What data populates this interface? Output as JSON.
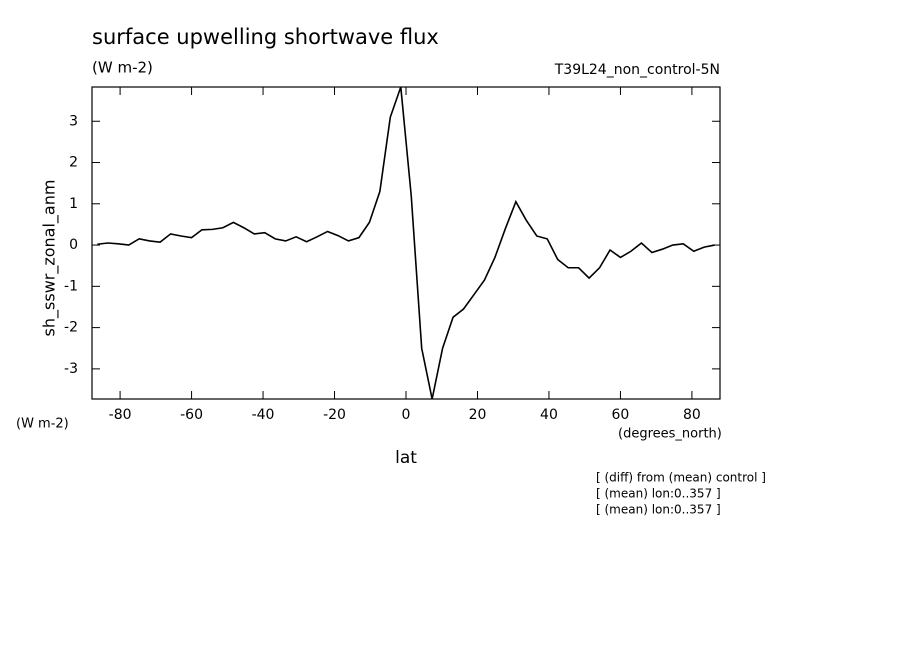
{
  "chart_data": {
    "type": "line",
    "title": "surface upwelling shortwave flux",
    "title_units": "(W m-2)",
    "subtitle_right": "T39L24_non_control-5N",
    "ylabel": "sh_sswr_zonal_anm",
    "y_units": "(W m-2)",
    "xlabel": "lat",
    "x_units": "(degrees_north)",
    "notes": [
      "[ (diff) from (mean) control ]",
      "[ (mean) lon:0..357 ]",
      "[ (mean) lon:0..357 ]"
    ],
    "xlim": [
      -87.86,
      87.86
    ],
    "ylim": [
      -3.73,
      3.83
    ],
    "xticks": [
      -80,
      -60,
      -40,
      -20,
      0,
      20,
      40,
      60,
      80
    ],
    "yticks": [
      -3,
      -2,
      -1,
      0,
      1,
      2,
      3
    ],
    "x": [
      -86.37,
      -83.44,
      -80.51,
      -77.58,
      -74.65,
      -71.73,
      -68.8,
      -65.87,
      -62.94,
      -60.01,
      -57.09,
      -54.16,
      -51.23,
      -48.3,
      -45.38,
      -42.45,
      -39.52,
      -36.59,
      -33.66,
      -30.74,
      -27.81,
      -24.88,
      -21.95,
      -19.03,
      -16.1,
      -13.17,
      -10.24,
      -7.31,
      -4.39,
      -1.46,
      1.46,
      4.39,
      7.31,
      10.24,
      13.17,
      16.1,
      19.03,
      21.95,
      24.88,
      27.81,
      30.74,
      33.66,
      36.59,
      39.52,
      42.45,
      45.38,
      48.3,
      51.23,
      54.16,
      57.09,
      60.01,
      62.94,
      65.87,
      68.8,
      71.73,
      74.65,
      77.58,
      80.51,
      83.44,
      86.37
    ],
    "series": [
      {
        "color": "#000000",
        "values": [
          0.02,
          0.05,
          0.03,
          0.0,
          0.15,
          0.1,
          0.07,
          0.27,
          0.22,
          0.18,
          0.37,
          0.38,
          0.42,
          0.55,
          0.42,
          0.27,
          0.3,
          0.15,
          0.1,
          0.2,
          0.08,
          0.2,
          0.33,
          0.23,
          0.1,
          0.18,
          0.55,
          1.3,
          3.1,
          3.83,
          1.2,
          -2.5,
          -3.73,
          -2.5,
          -1.75,
          -1.55,
          -1.2,
          -0.85,
          -0.3,
          0.4,
          1.05,
          0.6,
          0.22,
          0.15,
          -0.35,
          -0.55,
          -0.55,
          -0.8,
          -0.55,
          -0.12,
          -0.3,
          -0.15,
          0.05,
          -0.18,
          -0.1,
          0.0,
          0.03,
          -0.15,
          -0.05,
          0.0
        ]
      }
    ]
  }
}
